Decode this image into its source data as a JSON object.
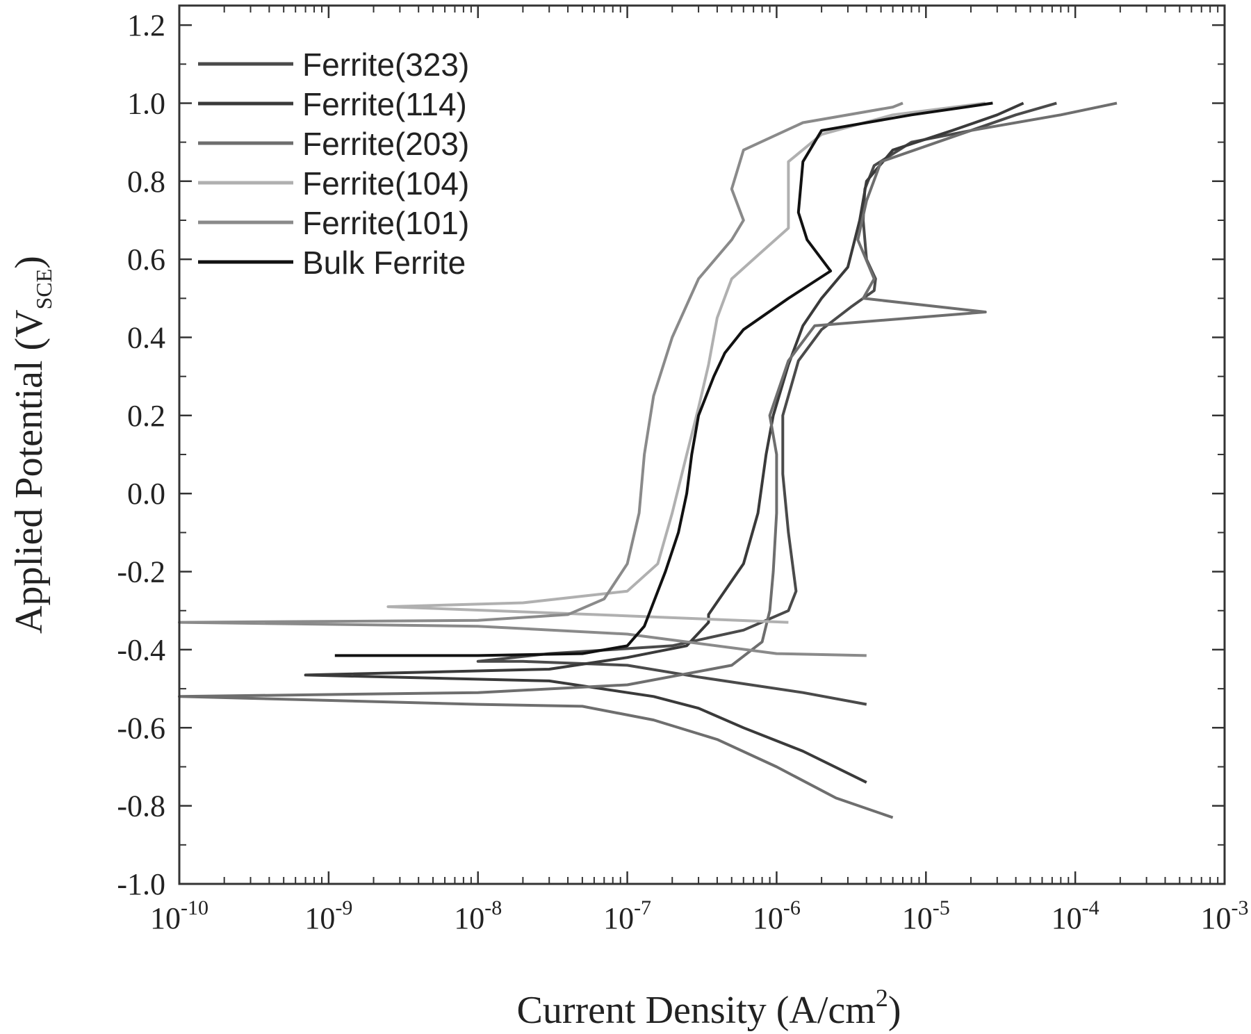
{
  "chart_data": {
    "type": "line",
    "xlabel": "Current Density (A/cm",
    "xlabel_sup": "2",
    "xlabel_end": ")",
    "ylabel": "Applied Potential (V",
    "ylabel_sub": "SCE",
    "ylabel_end": ")",
    "x_scale": "log",
    "xlim": [
      1e-10,
      0.001
    ],
    "ylim": [
      -1.0,
      1.25
    ],
    "x_ticks": [
      {
        "value": 1e-10,
        "base": "10",
        "exp": "-10"
      },
      {
        "value": 1e-09,
        "base": "10",
        "exp": "-9"
      },
      {
        "value": 1e-08,
        "base": "10",
        "exp": "-8"
      },
      {
        "value": 1e-07,
        "base": "10",
        "exp": "-7"
      },
      {
        "value": 1e-06,
        "base": "10",
        "exp": "-6"
      },
      {
        "value": 1e-05,
        "base": "10",
        "exp": "-5"
      },
      {
        "value": 0.0001,
        "base": "10",
        "exp": "-4"
      },
      {
        "value": 0.001,
        "base": "10",
        "exp": "-3"
      }
    ],
    "y_ticks": [
      {
        "value": 1.2,
        "label": "1.2"
      },
      {
        "value": 1.0,
        "label": "1.0"
      },
      {
        "value": 0.8,
        "label": "0.8"
      },
      {
        "value": 0.6,
        "label": "0.6"
      },
      {
        "value": 0.4,
        "label": "0.4"
      },
      {
        "value": 0.2,
        "label": "0.2"
      },
      {
        "value": 0.0,
        "label": "0.0"
      },
      {
        "value": -0.2,
        "label": "-0.2"
      },
      {
        "value": -0.4,
        "label": "-0.4"
      },
      {
        "value": -0.6,
        "label": "-0.6"
      },
      {
        "value": -0.8,
        "label": "-0.8"
      },
      {
        "value": -1.0,
        "label": "-1.0"
      }
    ],
    "grid": false,
    "legend_position": "top-left",
    "series": [
      {
        "name": "Ferrite(323)",
        "color": "#4a4a4a",
        "points": [
          [
            4e-06,
            -0.54
          ],
          [
            1.5e-06,
            -0.51
          ],
          [
            3e-07,
            -0.47
          ],
          [
            1e-07,
            -0.44
          ],
          [
            2e-08,
            -0.43
          ],
          [
            1e-08,
            -0.43
          ],
          [
            3e-08,
            -0.41
          ],
          [
            2e-07,
            -0.39
          ],
          [
            6e-07,
            -0.35
          ],
          [
            1.2e-06,
            -0.3
          ],
          [
            1.35e-06,
            -0.25
          ],
          [
            1.2e-06,
            -0.1
          ],
          [
            1.1e-06,
            0.05
          ],
          [
            1.1e-06,
            0.2
          ],
          [
            1.4e-06,
            0.34
          ],
          [
            2e-06,
            0.42
          ],
          [
            3.2e-06,
            0.48
          ],
          [
            3.8e-06,
            0.5
          ],
          [
            4.5e-06,
            0.52
          ],
          [
            4.6e-06,
            0.55
          ],
          [
            4e-06,
            0.6
          ],
          [
            3.8e-06,
            0.7
          ],
          [
            3.9e-06,
            0.78
          ],
          [
            4.5e-06,
            0.84
          ],
          [
            8e-06,
            0.9
          ],
          [
            2e-05,
            0.93
          ],
          [
            4e-05,
            0.97
          ],
          [
            7.5e-05,
            1.0
          ]
        ]
      },
      {
        "name": "Ferrite(114)",
        "color": "#3a3a3a",
        "points": [
          [
            4e-06,
            -0.74
          ],
          [
            1.5e-06,
            -0.66
          ],
          [
            6e-07,
            -0.6
          ],
          [
            3e-07,
            -0.55
          ],
          [
            1.5e-07,
            -0.52
          ],
          [
            3e-08,
            -0.48
          ],
          [
            7e-10,
            -0.465
          ],
          [
            3e-08,
            -0.45
          ],
          [
            1e-07,
            -0.42
          ],
          [
            2.5e-07,
            -0.39
          ],
          [
            3.5e-07,
            -0.33
          ],
          [
            3.5e-07,
            -0.31
          ],
          [
            6e-07,
            -0.18
          ],
          [
            7.5e-07,
            -0.05
          ],
          [
            8.5e-07,
            0.1
          ],
          [
            9.5e-07,
            0.2
          ],
          [
            1.2e-06,
            0.33
          ],
          [
            1.5e-06,
            0.43
          ],
          [
            2e-06,
            0.5
          ],
          [
            3e-06,
            0.58
          ],
          [
            3.6e-06,
            0.7
          ],
          [
            4e-06,
            0.8
          ],
          [
            6e-06,
            0.88
          ],
          [
            1.5e-05,
            0.93
          ],
          [
            3e-05,
            0.97
          ],
          [
            4.5e-05,
            1.0
          ]
        ]
      },
      {
        "name": "Ferrite(203)",
        "color": "#6e6e6e",
        "points": [
          [
            6e-06,
            -0.83
          ],
          [
            2.5e-06,
            -0.78
          ],
          [
            1e-06,
            -0.7
          ],
          [
            4e-07,
            -0.63
          ],
          [
            1.5e-07,
            -0.58
          ],
          [
            5e-08,
            -0.545
          ],
          [
            1e-08,
            -0.54
          ],
          [
            1e-10,
            -0.52
          ],
          [
            1e-08,
            -0.51
          ],
          [
            1e-07,
            -0.49
          ],
          [
            5e-07,
            -0.44
          ],
          [
            8e-07,
            -0.38
          ],
          [
            9e-07,
            -0.3
          ],
          [
            9.5e-07,
            -0.2
          ],
          [
            1e-06,
            -0.05
          ],
          [
            1e-06,
            0.1
          ],
          [
            9e-07,
            0.2
          ],
          [
            1.2e-06,
            0.34
          ],
          [
            1.8e-06,
            0.43
          ],
          [
            2.5e-05,
            0.465
          ],
          [
            3.8e-06,
            0.5
          ],
          [
            4.5e-06,
            0.55
          ],
          [
            3.5e-06,
            0.65
          ],
          [
            4e-06,
            0.75
          ],
          [
            5e-06,
            0.85
          ],
          [
            2e-05,
            0.93
          ],
          [
            8e-05,
            0.97
          ],
          [
            0.00019,
            1.0
          ]
        ]
      },
      {
        "name": "Ferrite(104)",
        "color": "#b0b0b0",
        "points": [
          [
            1.2e-06,
            -0.33
          ],
          [
            6e-08,
            -0.31
          ],
          [
            2.5e-09,
            -0.29
          ],
          [
            2e-08,
            -0.28
          ],
          [
            1e-07,
            -0.25
          ],
          [
            1.6e-07,
            -0.18
          ],
          [
            2e-07,
            -0.05
          ],
          [
            2.5e-07,
            0.1
          ],
          [
            3e-07,
            0.22
          ],
          [
            3.5e-07,
            0.33
          ],
          [
            4e-07,
            0.45
          ],
          [
            5e-07,
            0.55
          ],
          [
            8e-07,
            0.62
          ],
          [
            1.2e-06,
            0.68
          ],
          [
            1.2e-06,
            0.75
          ],
          [
            1.2e-06,
            0.85
          ],
          [
            2e-06,
            0.92
          ],
          [
            6e-06,
            0.97
          ],
          [
            2.5e-05,
            1.0
          ]
        ]
      },
      {
        "name": "Ferrite(101)",
        "color": "#8a8a8a",
        "points": [
          [
            4e-06,
            -0.415
          ],
          [
            1e-06,
            -0.41
          ],
          [
            1e-07,
            -0.36
          ],
          [
            1e-08,
            -0.34
          ],
          [
            1e-10,
            -0.33
          ],
          [
            1e-08,
            -0.325
          ],
          [
            4e-08,
            -0.31
          ],
          [
            7e-08,
            -0.27
          ],
          [
            1e-07,
            -0.18
          ],
          [
            1.2e-07,
            -0.05
          ],
          [
            1.3e-07,
            0.1
          ],
          [
            1.5e-07,
            0.25
          ],
          [
            2e-07,
            0.4
          ],
          [
            3e-07,
            0.55
          ],
          [
            5e-07,
            0.65
          ],
          [
            6e-07,
            0.7
          ],
          [
            5e-07,
            0.78
          ],
          [
            6e-07,
            0.88
          ],
          [
            1.5e-06,
            0.95
          ],
          [
            6e-06,
            0.99
          ],
          [
            7e-06,
            1.0
          ]
        ]
      },
      {
        "name": "Bulk Ferrite",
        "color": "#111111",
        "points": [
          [
            1.1e-09,
            -0.415
          ],
          [
            1e-08,
            -0.415
          ],
          [
            5e-08,
            -0.41
          ],
          [
            1e-07,
            -0.39
          ],
          [
            1.3e-07,
            -0.34
          ],
          [
            1.8e-07,
            -0.2
          ],
          [
            2.2e-07,
            -0.1
          ],
          [
            2.5e-07,
            0.0
          ],
          [
            2.7e-07,
            0.1
          ],
          [
            3e-07,
            0.2
          ],
          [
            3.8e-07,
            0.3
          ],
          [
            4.5e-07,
            0.36
          ],
          [
            6e-07,
            0.42
          ],
          [
            1.2e-06,
            0.5
          ],
          [
            2.3e-06,
            0.57
          ],
          [
            1.6e-06,
            0.65
          ],
          [
            1.4e-06,
            0.72
          ],
          [
            1.5e-06,
            0.85
          ],
          [
            2e-06,
            0.93
          ],
          [
            8e-06,
            0.97
          ],
          [
            2.8e-05,
            1.0
          ]
        ]
      }
    ]
  }
}
